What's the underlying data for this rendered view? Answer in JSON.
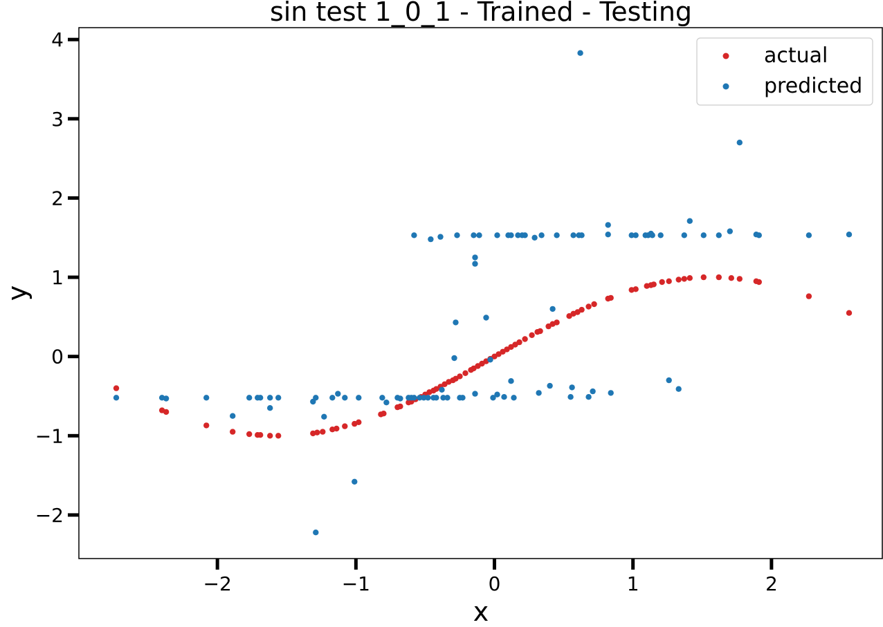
{
  "chart_data": {
    "type": "scatter",
    "title": "sin test 1_0_1 - Trained - Testing",
    "xlabel": "x",
    "ylabel": "y",
    "xlim": [
      -3.0,
      2.8
    ],
    "ylim": [
      -2.55,
      4.15
    ],
    "xticks": [
      -2,
      -1,
      0,
      1,
      2
    ],
    "xtick_labels": [
      "−2",
      "−1",
      "0",
      "1",
      "2"
    ],
    "yticks": [
      -2,
      -1,
      0,
      1,
      2,
      3,
      4
    ],
    "ytick_labels": [
      "−2",
      "−1",
      "0",
      "1",
      "2",
      "3",
      "4"
    ],
    "grid": false,
    "legend_position": "top-right",
    "series": [
      {
        "name": "actual",
        "color": "#d62728",
        "points": [
          [
            -2.73,
            -0.4
          ],
          [
            -2.4,
            -0.68
          ],
          [
            -2.37,
            -0.7
          ],
          [
            -2.08,
            -0.87
          ],
          [
            -1.89,
            -0.95
          ],
          [
            -1.77,
            -0.98
          ],
          [
            -1.71,
            -0.99
          ],
          [
            -1.69,
            -0.99
          ],
          [
            -1.62,
            -1.0
          ],
          [
            -1.56,
            -1.0
          ],
          [
            -1.31,
            -0.97
          ],
          [
            -1.28,
            -0.96
          ],
          [
            -1.24,
            -0.95
          ],
          [
            -1.17,
            -0.92
          ],
          [
            -1.14,
            -0.91
          ],
          [
            -1.08,
            -0.88
          ],
          [
            -1.01,
            -0.85
          ],
          [
            -0.98,
            -0.83
          ],
          [
            -0.82,
            -0.73
          ],
          [
            -0.8,
            -0.72
          ],
          [
            -0.7,
            -0.64
          ],
          [
            -0.68,
            -0.63
          ],
          [
            -0.62,
            -0.58
          ],
          [
            -0.6,
            -0.57
          ],
          [
            -0.57,
            -0.54
          ],
          [
            -0.53,
            -0.51
          ],
          [
            -0.5,
            -0.48
          ],
          [
            -0.47,
            -0.45
          ],
          [
            -0.44,
            -0.43
          ],
          [
            -0.42,
            -0.41
          ],
          [
            -0.39,
            -0.38
          ],
          [
            -0.36,
            -0.35
          ],
          [
            -0.33,
            -0.32
          ],
          [
            -0.3,
            -0.3
          ],
          [
            -0.28,
            -0.28
          ],
          [
            -0.25,
            -0.25
          ],
          [
            -0.21,
            -0.21
          ],
          [
            -0.17,
            -0.17
          ],
          [
            -0.15,
            -0.15
          ],
          [
            -0.12,
            -0.12
          ],
          [
            -0.09,
            -0.09
          ],
          [
            -0.06,
            -0.06
          ],
          [
            -0.03,
            -0.03
          ],
          [
            0.0,
            0.0
          ],
          [
            0.03,
            0.03
          ],
          [
            0.06,
            0.06
          ],
          [
            0.09,
            0.09
          ],
          [
            0.12,
            0.12
          ],
          [
            0.15,
            0.15
          ],
          [
            0.18,
            0.18
          ],
          [
            0.22,
            0.22
          ],
          [
            0.27,
            0.27
          ],
          [
            0.31,
            0.31
          ],
          [
            0.33,
            0.32
          ],
          [
            0.39,
            0.38
          ],
          [
            0.42,
            0.41
          ],
          [
            0.45,
            0.43
          ],
          [
            0.54,
            0.51
          ],
          [
            0.57,
            0.54
          ],
          [
            0.6,
            0.56
          ],
          [
            0.63,
            0.59
          ],
          [
            0.68,
            0.63
          ],
          [
            0.72,
            0.66
          ],
          [
            0.82,
            0.73
          ],
          [
            0.84,
            0.74
          ],
          [
            0.99,
            0.84
          ],
          [
            1.02,
            0.85
          ],
          [
            1.1,
            0.89
          ],
          [
            1.13,
            0.9
          ],
          [
            1.15,
            0.91
          ],
          [
            1.21,
            0.94
          ],
          [
            1.26,
            0.95
          ],
          [
            1.33,
            0.97
          ],
          [
            1.37,
            0.98
          ],
          [
            1.41,
            0.99
          ],
          [
            1.51,
            1.0
          ],
          [
            1.62,
            1.0
          ],
          [
            1.71,
            0.99
          ],
          [
            1.77,
            0.98
          ],
          [
            1.89,
            0.95
          ],
          [
            1.91,
            0.94
          ],
          [
            2.27,
            0.76
          ],
          [
            2.56,
            0.55
          ]
        ]
      },
      {
        "name": "predicted",
        "color": "#1f77b4",
        "points": [
          [
            -2.73,
            -0.52
          ],
          [
            -2.4,
            -0.52
          ],
          [
            -2.37,
            -0.53
          ],
          [
            -2.08,
            -0.52
          ],
          [
            -1.89,
            -0.75
          ],
          [
            -1.77,
            -0.52
          ],
          [
            -1.71,
            -0.52
          ],
          [
            -1.69,
            -0.52
          ],
          [
            -1.62,
            -0.52
          ],
          [
            -1.62,
            -0.65
          ],
          [
            -1.56,
            -0.52
          ],
          [
            -1.31,
            -0.57
          ],
          [
            -1.29,
            -0.52
          ],
          [
            -1.29,
            -2.22
          ],
          [
            -1.23,
            -0.76
          ],
          [
            -1.17,
            -0.52
          ],
          [
            -1.13,
            -0.47
          ],
          [
            -1.08,
            -0.52
          ],
          [
            -1.01,
            -1.58
          ],
          [
            -0.98,
            -0.52
          ],
          [
            -0.81,
            -0.52
          ],
          [
            -0.78,
            -0.58
          ],
          [
            -0.7,
            -0.52
          ],
          [
            -0.68,
            -0.53
          ],
          [
            -0.62,
            -0.52
          ],
          [
            -0.6,
            -0.52
          ],
          [
            -0.58,
            -0.52
          ],
          [
            -0.58,
            1.53
          ],
          [
            -0.54,
            -0.52
          ],
          [
            -0.51,
            -0.52
          ],
          [
            -0.48,
            -0.52
          ],
          [
            -0.46,
            1.48
          ],
          [
            -0.44,
            -0.52
          ],
          [
            -0.42,
            -0.52
          ],
          [
            -0.39,
            1.51
          ],
          [
            -0.38,
            -0.42
          ],
          [
            -0.37,
            -0.52
          ],
          [
            -0.34,
            -0.52
          ],
          [
            -0.29,
            -0.02
          ],
          [
            -0.28,
            0.43
          ],
          [
            -0.27,
            1.53
          ],
          [
            -0.25,
            -0.52
          ],
          [
            -0.23,
            -0.52
          ],
          [
            -0.15,
            1.53
          ],
          [
            -0.14,
            1.25
          ],
          [
            -0.14,
            1.17
          ],
          [
            -0.14,
            -0.47
          ],
          [
            -0.11,
            1.53
          ],
          [
            -0.06,
            0.49
          ],
          [
            -0.03,
            -0.04
          ],
          [
            -0.01,
            -0.52
          ],
          [
            0.02,
            1.53
          ],
          [
            0.02,
            -0.48
          ],
          [
            0.07,
            -0.51
          ],
          [
            0.1,
            1.53
          ],
          [
            0.12,
            1.53
          ],
          [
            0.12,
            -0.31
          ],
          [
            0.14,
            -0.52
          ],
          [
            0.17,
            1.53
          ],
          [
            0.2,
            1.53
          ],
          [
            0.22,
            1.53
          ],
          [
            0.29,
            1.5
          ],
          [
            0.32,
            -0.46
          ],
          [
            0.34,
            1.53
          ],
          [
            0.4,
            -0.37
          ],
          [
            0.42,
            0.6
          ],
          [
            0.45,
            1.53
          ],
          [
            0.55,
            -0.51
          ],
          [
            0.56,
            -0.39
          ],
          [
            0.57,
            1.53
          ],
          [
            0.61,
            1.53
          ],
          [
            0.62,
            3.83
          ],
          [
            0.63,
            1.53
          ],
          [
            0.68,
            -0.51
          ],
          [
            0.71,
            -0.44
          ],
          [
            0.82,
            1.66
          ],
          [
            0.82,
            1.54
          ],
          [
            0.84,
            -0.46
          ],
          [
            0.99,
            1.53
          ],
          [
            1.02,
            1.53
          ],
          [
            1.09,
            1.53
          ],
          [
            1.11,
            1.53
          ],
          [
            1.13,
            1.55
          ],
          [
            1.14,
            1.53
          ],
          [
            1.2,
            1.53
          ],
          [
            1.26,
            -0.3
          ],
          [
            1.33,
            -0.41
          ],
          [
            1.37,
            1.53
          ],
          [
            1.41,
            1.71
          ],
          [
            1.51,
            1.53
          ],
          [
            1.62,
            1.53
          ],
          [
            1.7,
            1.58
          ],
          [
            1.77,
            2.7
          ],
          [
            1.89,
            1.54
          ],
          [
            1.91,
            1.53
          ],
          [
            2.27,
            1.53
          ],
          [
            2.56,
            1.54
          ]
        ]
      }
    ]
  }
}
